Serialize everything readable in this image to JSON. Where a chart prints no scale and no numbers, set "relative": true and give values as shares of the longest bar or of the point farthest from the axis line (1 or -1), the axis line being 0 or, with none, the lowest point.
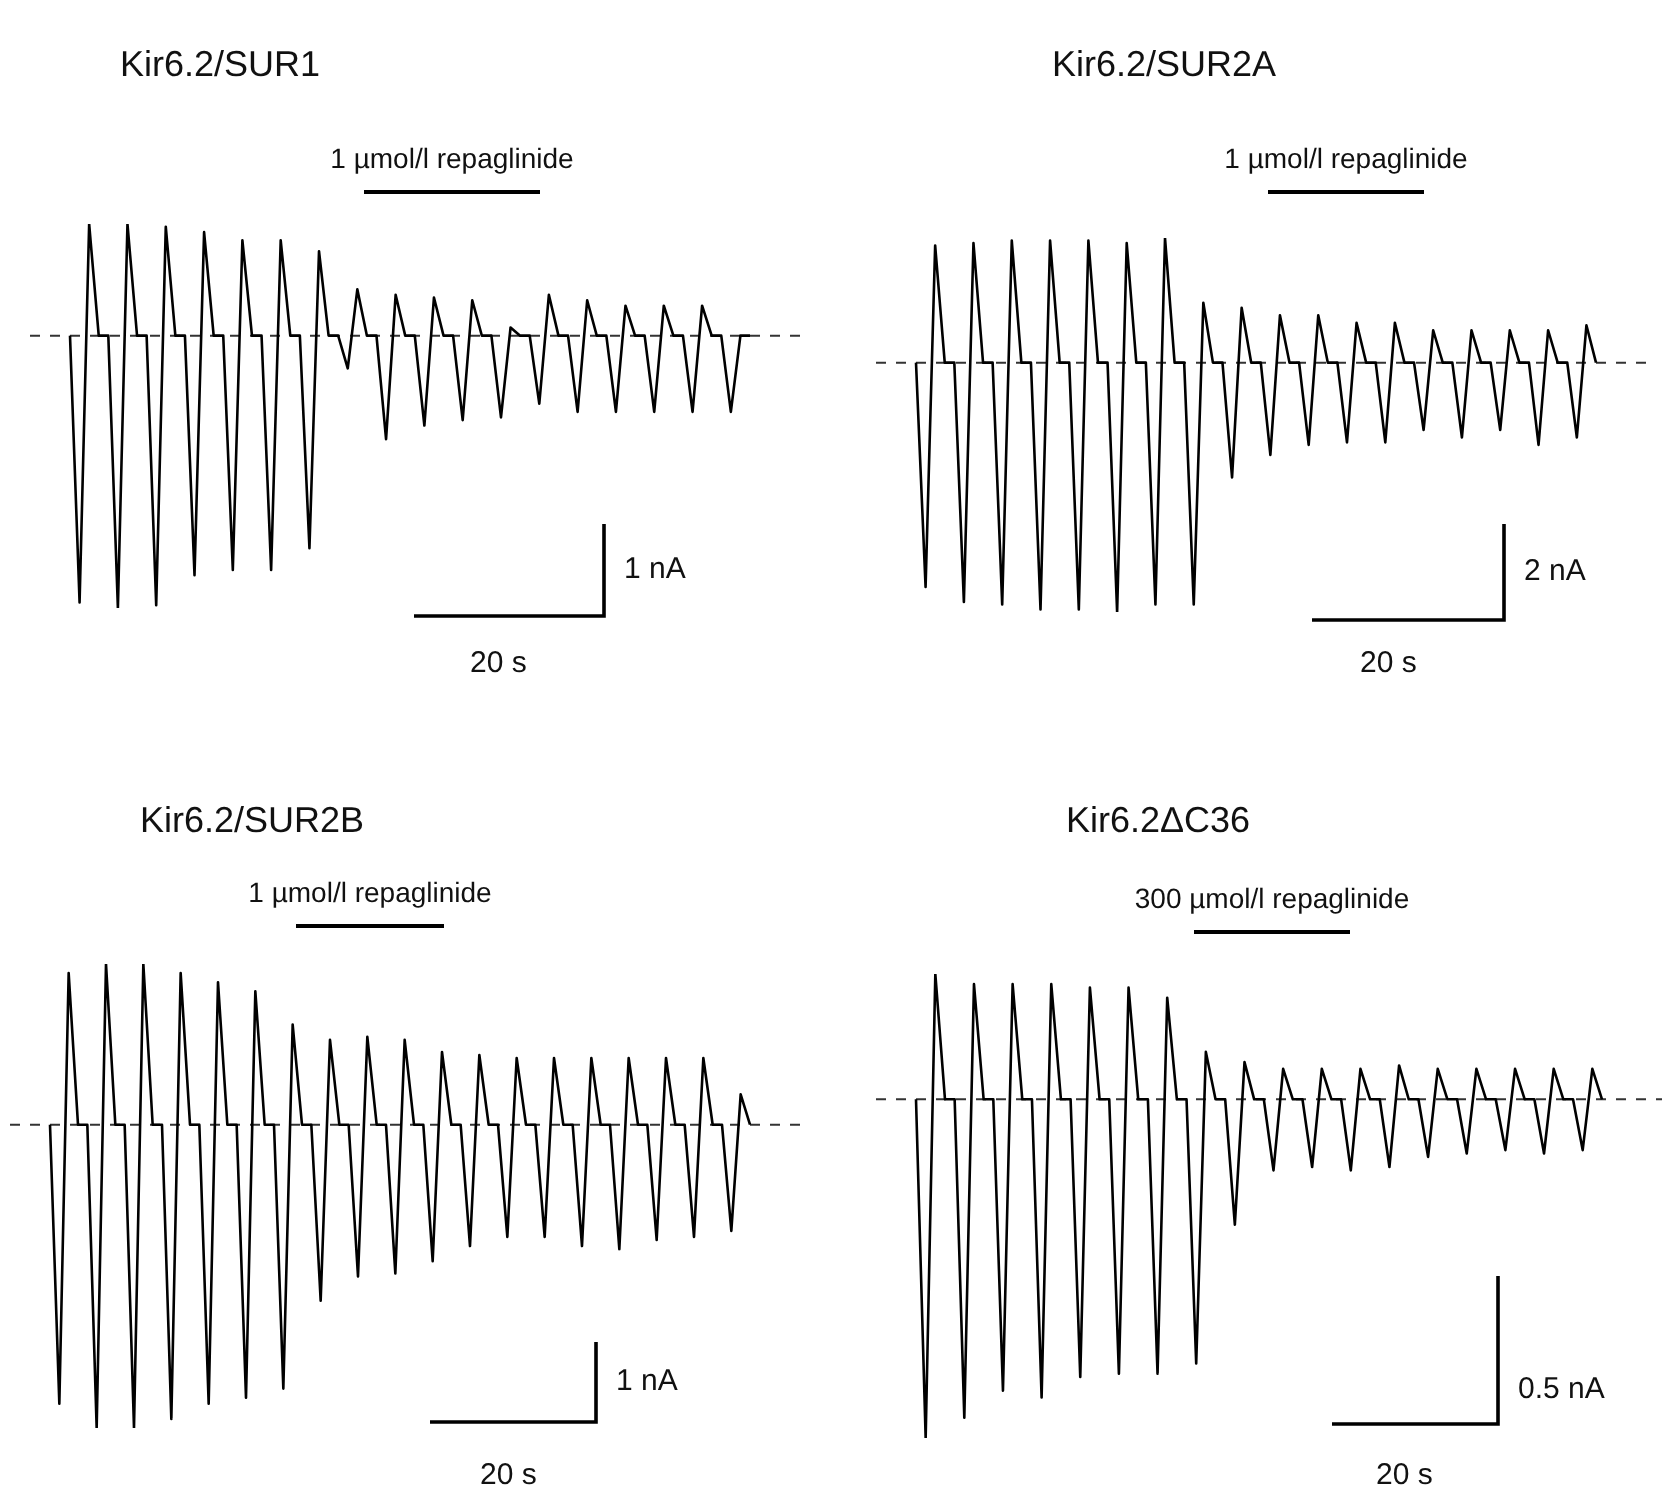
{
  "chart_data": [
    {
      "type": "line",
      "title": "Kir6.2/SUR1",
      "relative": true,
      "ref_lines": [
        {
          "axis": "y",
          "value": 0,
          "line_style": "dashed",
          "color": "#333333"
        }
      ],
      "annotations": [
        "1 µmol/l repaglinide",
        "1 nA",
        "20 s"
      ],
      "categories": [
        null,
        null,
        null,
        null,
        null,
        null,
        null,
        null,
        null,
        null,
        null,
        null,
        null,
        null,
        null,
        null,
        null,
        null,
        null,
        null,
        null,
        null,
        null,
        null,
        null,
        null,
        null,
        null,
        null,
        null,
        null,
        null,
        null,
        null,
        null,
        null,
        null,
        null,
        null,
        null,
        null,
        null,
        null,
        null,
        null,
        null,
        null,
        null,
        null,
        null,
        null,
        null,
        null,
        null,
        null,
        null,
        null,
        null,
        null,
        null,
        null,
        null,
        null,
        null,
        null,
        null,
        null,
        null,
        null,
        null,
        null,
        null
      ],
      "series": [
        {
          "color": "#000000",
          "values": [
            0,
            -0.98,
            0.41,
            0,
            0,
            -1,
            0.41,
            0,
            0,
            -0.99,
            0.4,
            0,
            0,
            -0.88,
            0.38,
            0,
            0,
            -0.86,
            0.35,
            0,
            0,
            -0.86,
            0.35,
            0,
            0,
            -0.78,
            0.31,
            0,
            0,
            -0.12,
            0.17,
            0,
            0,
            -0.38,
            0.15,
            0,
            0,
            -0.33,
            0.14,
            0,
            0,
            -0.31,
            0.13,
            0,
            0,
            -0.3,
            0.03,
            0,
            0,
            -0.25,
            0.15,
            0,
            0,
            -0.28,
            0.13,
            0,
            0,
            -0.28,
            0.11,
            0,
            0,
            -0.28,
            0.11,
            0,
            0,
            -0.28,
            0.11,
            0,
            0,
            -0.28,
            0,
            0
          ]
        }
      ]
    },
    {
      "type": "line",
      "title": "Kir6.2/SUR2A",
      "relative": true,
      "ref_lines": [
        {
          "axis": "y",
          "value": 0,
          "line_style": "dashed",
          "color": "#333333"
        }
      ],
      "annotations": [
        "1 µmol/l repaglinide",
        "2 nA",
        "20 s"
      ],
      "categories": [
        null,
        null,
        null,
        null,
        null,
        null,
        null,
        null,
        null,
        null,
        null,
        null,
        null,
        null,
        null,
        null,
        null,
        null,
        null,
        null,
        null,
        null,
        null,
        null,
        null,
        null,
        null,
        null,
        null,
        null,
        null,
        null,
        null,
        null,
        null,
        null,
        null,
        null,
        null,
        null,
        null,
        null,
        null,
        null,
        null,
        null,
        null,
        null,
        null,
        null,
        null,
        null,
        null,
        null,
        null,
        null,
        null,
        null,
        null,
        null,
        null,
        null,
        null,
        null,
        null,
        null,
        null,
        null,
        null,
        null,
        null,
        null
      ],
      "series": [
        {
          "color": "#000000",
          "values": [
            0,
            -0.9,
            0.47,
            0,
            0,
            -0.96,
            0.48,
            0,
            0,
            -0.97,
            0.49,
            0,
            0,
            -0.99,
            0.49,
            0,
            0,
            -0.99,
            0.49,
            0,
            0,
            -1,
            0.48,
            0,
            0,
            -0.97,
            0.5,
            0,
            0,
            -0.97,
            0.24,
            0,
            0,
            -0.46,
            0.22,
            0,
            0,
            -0.37,
            0.19,
            0,
            0,
            -0.33,
            0.19,
            0,
            0,
            -0.32,
            0.16,
            0,
            0,
            -0.32,
            0.16,
            0,
            0,
            -0.27,
            0.13,
            0,
            0,
            -0.3,
            0.13,
            0,
            0,
            -0.27,
            0.13,
            0,
            0,
            -0.33,
            0.13,
            0,
            0,
            -0.3,
            0.15,
            0
          ]
        }
      ]
    },
    {
      "type": "line",
      "title": "Kir6.2/SUR2B",
      "relative": true,
      "ref_lines": [
        {
          "axis": "y",
          "value": 0,
          "line_style": "dashed",
          "color": "#333333"
        }
      ],
      "annotations": [
        "1 µmol/l repaglinide",
        "1 nA",
        "20 s"
      ],
      "categories": [
        null,
        null,
        null,
        null,
        null,
        null,
        null,
        null,
        null,
        null,
        null,
        null,
        null,
        null,
        null,
        null,
        null,
        null,
        null,
        null,
        null,
        null,
        null,
        null,
        null,
        null,
        null,
        null,
        null,
        null,
        null,
        null,
        null,
        null,
        null,
        null,
        null,
        null,
        null,
        null,
        null,
        null,
        null,
        null,
        null,
        null,
        null,
        null,
        null,
        null,
        null,
        null,
        null,
        null,
        null,
        null,
        null,
        null,
        null,
        null,
        null,
        null,
        null,
        null,
        null,
        null,
        null,
        null,
        null,
        null,
        null,
        null,
        null,
        null,
        null,
        null
      ],
      "series": [
        {
          "color": "#000000",
          "values": [
            0,
            -0.92,
            0.5,
            0,
            0,
            -1,
            0.53,
            0,
            0,
            -1,
            0.53,
            0,
            0,
            -0.97,
            0.5,
            0,
            0,
            -0.92,
            0.47,
            0,
            0,
            -0.9,
            0.44,
            0,
            0,
            -0.87,
            0.33,
            0,
            0,
            -0.58,
            0.28,
            0,
            0,
            -0.5,
            0.29,
            0,
            0,
            -0.49,
            0.28,
            0,
            0,
            -0.45,
            0.24,
            0,
            0,
            -0.4,
            0.23,
            0,
            0,
            -0.37,
            0.22,
            0,
            0,
            -0.37,
            0.22,
            0,
            0,
            -0.4,
            0.22,
            0,
            0,
            -0.41,
            0.22,
            0,
            0,
            -0.38,
            0.22,
            0,
            0,
            -0.37,
            0.22,
            0,
            0,
            -0.35,
            0.1,
            0
          ]
        }
      ]
    },
    {
      "type": "line",
      "title": "Kir6.2ΔC36",
      "relative": true,
      "ref_lines": [
        {
          "axis": "y",
          "value": 0,
          "line_style": "dashed",
          "color": "#333333"
        }
      ],
      "annotations": [
        "300 µmol/l repaglinide",
        "0.5 nA",
        "20 s"
      ],
      "categories": [
        null,
        null,
        null,
        null,
        null,
        null,
        null,
        null,
        null,
        null,
        null,
        null,
        null,
        null,
        null,
        null,
        null,
        null,
        null,
        null,
        null,
        null,
        null,
        null,
        null,
        null,
        null,
        null,
        null,
        null,
        null,
        null,
        null,
        null,
        null,
        null,
        null,
        null,
        null,
        null,
        null,
        null,
        null,
        null,
        null,
        null,
        null,
        null,
        null,
        null,
        null,
        null,
        null,
        null,
        null,
        null,
        null,
        null,
        null,
        null,
        null,
        null,
        null,
        null,
        null,
        null,
        null,
        null,
        null,
        null,
        null,
        null
      ],
      "series": [
        {
          "color": "#000000",
          "values": [
            0,
            -1,
            0.37,
            0,
            0,
            -0.94,
            0.34,
            0,
            0,
            -0.86,
            0.34,
            0,
            0,
            -0.88,
            0.34,
            0,
            0,
            -0.82,
            0.33,
            0,
            0,
            -0.81,
            0.33,
            0,
            0,
            -0.81,
            0.3,
            0,
            0,
            -0.78,
            0.14,
            0,
            0,
            -0.37,
            0.11,
            0,
            0,
            -0.21,
            0.09,
            0,
            0,
            -0.2,
            0.09,
            0,
            0,
            -0.21,
            0.09,
            0,
            0,
            -0.2,
            0.1,
            0,
            0,
            -0.17,
            0.09,
            0,
            0,
            -0.16,
            0.09,
            0,
            0,
            -0.15,
            0.09,
            0,
            0,
            -0.16,
            0.09,
            0,
            0,
            -0.15,
            0.09,
            0
          ]
        }
      ]
    }
  ]
}
